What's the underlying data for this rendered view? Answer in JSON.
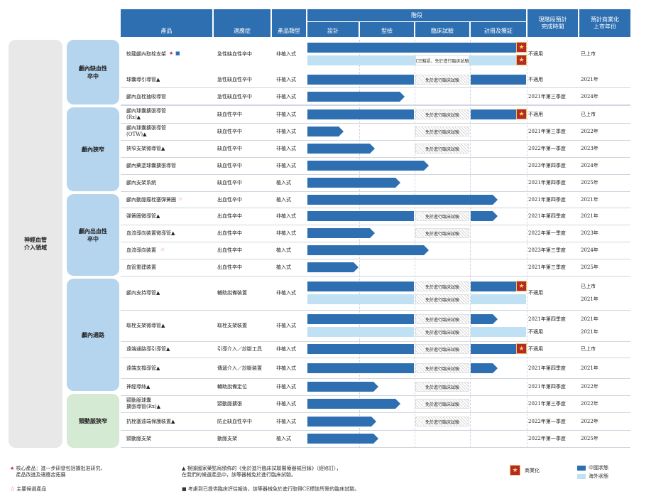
{
  "colors": {
    "domestic": "#2d6fb0",
    "overseas": "#bfe1f3",
    "header": "#2d6fb0",
    "group_dark": "#b5d4ee",
    "group_green": "#d5ead2",
    "flag": "#b22a2a"
  },
  "header": {
    "product": "產品",
    "indication": "適應症",
    "type": "產品類型",
    "stage": "階段",
    "design": "設計",
    "type_test": "型檢",
    "clinical": "臨床試驗",
    "registration": "註冊及獲証",
    "completion": "現階段預計\n完成時間",
    "commercial": "預計商業化\n上市年份"
  },
  "field": "神經血管\n介入領域",
  "groups": [
    "顱內缺血性\n卒中",
    "顱內狹窄",
    "顱內出血性\n卒中",
    "顱內通路",
    "頸動脈狹窄"
  ],
  "rows": [
    {
      "product": "蛟龍顱內取栓支架",
      "ind": "急性缺血性卒中",
      "type": "非植入式",
      "comp": "不適用",
      "year": "已上市"
    },
    {
      "product": "球囊導引導管▲",
      "ind": "急性缺血性卒中",
      "type": "非植入式",
      "comp": "不適用",
      "year": "2021年"
    },
    {
      "product": "顱內血栓抽吸導管",
      "ind": "急性缺血性卒中",
      "type": "非植入式",
      "comp": "2021年第三季度",
      "year": "2024年"
    },
    {
      "product": "顱內球囊擴張導管\n(Rx)▲",
      "ind": "缺血性卒中",
      "type": "非植入式",
      "comp": "不適用",
      "year": "已上市"
    },
    {
      "product": "顱內球囊擴張導管\n(OTW)▲",
      "ind": "缺血性卒中",
      "type": "非植入式",
      "comp": "2021年第三季度",
      "year": "2022年"
    },
    {
      "product": "狹窄支架微導管▲",
      "ind": "缺血性卒中",
      "type": "非植入式",
      "comp": "2022年第一季度",
      "year": "2023年"
    },
    {
      "product": "顱內藥塗球囊擴張導管",
      "ind": "缺血性卒中",
      "type": "非植入式",
      "comp": "2023年第四季度",
      "year": "2024年"
    },
    {
      "product": "顱內支架系統",
      "ind": "缺血性卒中",
      "type": "植入式",
      "comp": "2021年第四季度",
      "year": "2025年"
    },
    {
      "product": "顱內動脈瘤栓塞彈簧圈",
      "ind": "出血性卒中",
      "type": "植入式",
      "comp": "2021年第四季度",
      "year": "2021年"
    },
    {
      "product": "彈簧圈微導管▲",
      "ind": "出血性卒中",
      "type": "非植入式",
      "comp": "2021年第四季度",
      "year": "2021年"
    },
    {
      "product": "血流導向裝置微導管▲",
      "ind": "出血性卒中",
      "type": "非植入式",
      "comp": "2022年第一季度",
      "year": "2023年"
    },
    {
      "product": "血流導向裝置",
      "ind": "出血性卒中",
      "type": "植入式",
      "comp": "2023年第三季度",
      "year": "2024年"
    },
    {
      "product": "血管重建裝置",
      "ind": "出血性卒中",
      "type": "植入式",
      "comp": "2021年第三季度",
      "year": "2025年"
    },
    {
      "product": "顱內支持導管▲",
      "ind": "輔助說備裝置",
      "type": "非植入式",
      "comp": "不適用",
      "year": "已上市",
      "year2": "2021年"
    },
    {
      "product": "取栓支架微導管▲",
      "ind": "取栓支架裝置",
      "type": "非植入式",
      "comp": "2021年第四季度",
      "year": "2021年",
      "comp2": "不適用",
      "year2": "2021年"
    },
    {
      "product": "遠端通路導引導管▲",
      "ind": "引導介入／診斷工具",
      "type": "非植入式",
      "comp": "不適用",
      "year": "已上市"
    },
    {
      "product": "遠端支撐導管▲",
      "ind": "傳遞介入／診斷裝置",
      "type": "非植入式",
      "comp": "2021年第四季度",
      "year": "2021年"
    },
    {
      "product": "神經導絲▲",
      "ind": "輔助說備定位",
      "type": "非植入式",
      "comp": "2021年第四季度",
      "year": "2022年"
    },
    {
      "product": "頸動脈球囊\n擴張導管(Rx)▲",
      "ind": "頸動脈擴張",
      "type": "非植入式",
      "comp": "2021年第三季度",
      "year": "2022年"
    },
    {
      "product": "抗栓塞遠端保護裝置▲",
      "ind": "防止缺血性卒中",
      "type": "非植入式",
      "comp": "2022年第一季度",
      "year": "2022年"
    },
    {
      "product": "頸動脈支架",
      "ind": "動脈支架",
      "type": "植入式",
      "comp": "2022年第一季度",
      "year": "2025年"
    }
  ],
  "labels": {
    "exempt": "免於進行臨床試驗",
    "ce": "CE豁認，免於進行臨床試驗"
  },
  "legend": {
    "core_star": "★",
    "core": "核心產品：進一步研發包括擴批准研究、\n產品改進及適應症拓展",
    "key_star": "☆",
    "key": "主要候選產品",
    "tri_note": "▲ 根據國家藥監局頒佈的《免於進行臨床試驗醫療器械目錄》（經修訂），\n在我們的候選產品中，該等器械免於進行臨床試驗。",
    "sq_note": "■ 考慮到已提供臨床評估報告，該等器械免於進行取得CE標誌所需的臨床試驗。",
    "commercial": "商業化",
    "domestic": "中國狀態",
    "overseas": "海外狀態"
  }
}
